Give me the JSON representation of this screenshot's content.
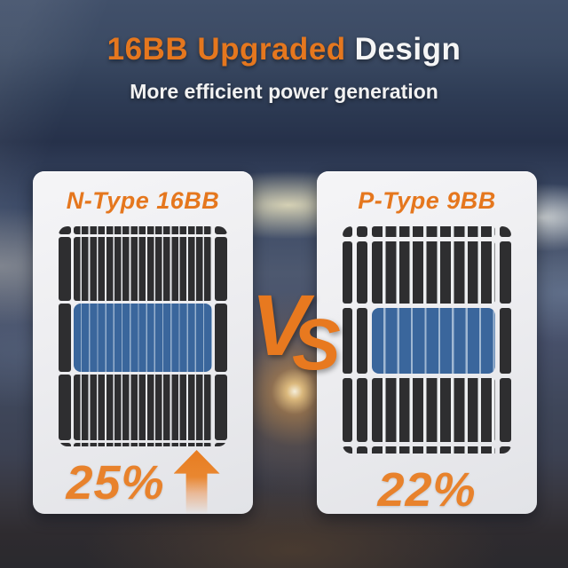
{
  "header": {
    "title_highlight": "16BB Upgraded",
    "title_rest": "Design",
    "subtitle": "More efficient power generation"
  },
  "vs": {
    "letter_v": "V",
    "letter_s": "S"
  },
  "panels": {
    "left": {
      "label": "N-Type 16BB",
      "efficiency": "25%",
      "busbar_count": 16,
      "trend": "up",
      "highlight_cell": "blue center cell"
    },
    "right": {
      "label": "P-Type 9BB",
      "efficiency": "22%",
      "busbar_count": 9,
      "highlight_cell": "blue center cell"
    }
  },
  "colors": {
    "accent_orange": "#e5771e",
    "percent_orange": "#e8822c",
    "panel_cell_dark": "#2e2e30",
    "highlight_cell_blue": "#3a669c",
    "card_background": "#eef0f2"
  }
}
